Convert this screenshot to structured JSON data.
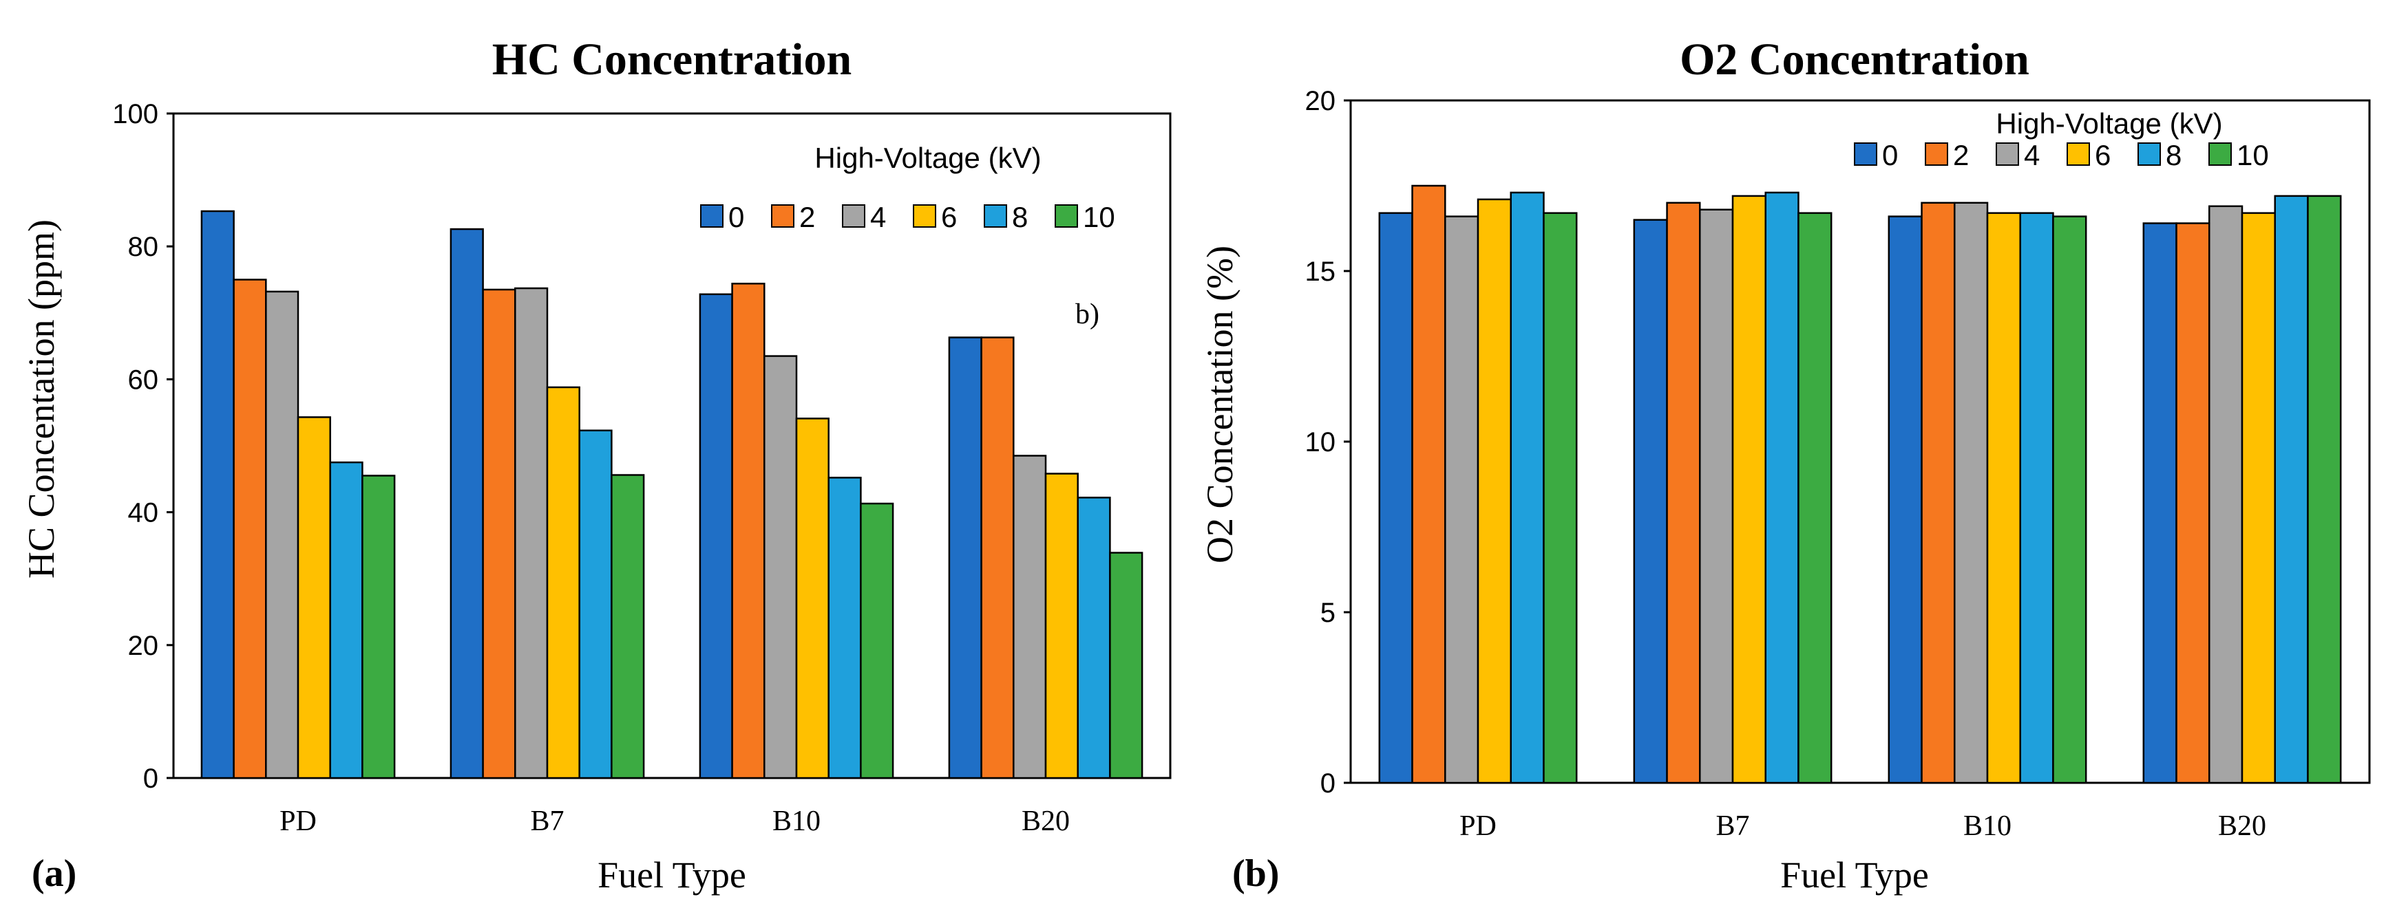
{
  "chart_data": [
    {
      "type": "bar",
      "panel_label": "(a)",
      "title": "HC Concentration",
      "xlabel": "Fuel Type",
      "ylabel": "HC Concentation (ppm)",
      "ylim": [
        0,
        100
      ],
      "yticks": [
        "0",
        "20",
        "40",
        "60",
        "80",
        "100"
      ],
      "categories": [
        "PD",
        "B7",
        "B10",
        "B20"
      ],
      "legend_title": "High-Voltage (kV)",
      "legend_position": "top-right",
      "annotation": "b)",
      "grid": false,
      "series": [
        {
          "name": "0",
          "color": "#1f6fc6",
          "values": [
            85.3,
            82.6,
            72.8,
            66.3
          ]
        },
        {
          "name": "2",
          "color": "#f6781f",
          "values": [
            75.0,
            73.5,
            74.4,
            66.3
          ]
        },
        {
          "name": "4",
          "color": "#a5a5a5",
          "values": [
            73.2,
            73.7,
            63.5,
            48.5
          ]
        },
        {
          "name": "6",
          "color": "#ffc000",
          "values": [
            54.3,
            58.8,
            54.1,
            45.8
          ]
        },
        {
          "name": "8",
          "color": "#1fa0dc",
          "values": [
            47.5,
            52.3,
            45.2,
            42.2
          ]
        },
        {
          "name": "10",
          "color": "#3cab42",
          "values": [
            45.5,
            45.6,
            41.3,
            33.9
          ]
        }
      ]
    },
    {
      "type": "bar",
      "panel_label": "(b)",
      "title": "O2 Concentration",
      "xlabel": "Fuel Type",
      "ylabel": "O2 Concentation (%)",
      "ylim": [
        0,
        20
      ],
      "yticks": [
        "0",
        "5",
        "10",
        "15",
        "20"
      ],
      "categories": [
        "PD",
        "B7",
        "B10",
        "B20"
      ],
      "legend_title": "High-Voltage (kV)",
      "legend_position": "top-right",
      "annotation": "",
      "grid": false,
      "series": [
        {
          "name": "0",
          "color": "#1f6fc6",
          "values": [
            16.7,
            16.5,
            16.6,
            16.4
          ]
        },
        {
          "name": "2",
          "color": "#f6781f",
          "values": [
            17.5,
            17.0,
            17.0,
            16.4
          ]
        },
        {
          "name": "4",
          "color": "#a5a5a5",
          "values": [
            16.6,
            16.8,
            17.0,
            16.9
          ]
        },
        {
          "name": "6",
          "color": "#ffc000",
          "values": [
            17.1,
            17.2,
            16.7,
            16.7
          ]
        },
        {
          "name": "8",
          "color": "#1fa0dc",
          "values": [
            17.3,
            17.3,
            16.7,
            17.2
          ]
        },
        {
          "name": "10",
          "color": "#3cab42",
          "values": [
            16.7,
            16.7,
            16.6,
            17.2
          ]
        }
      ]
    }
  ]
}
